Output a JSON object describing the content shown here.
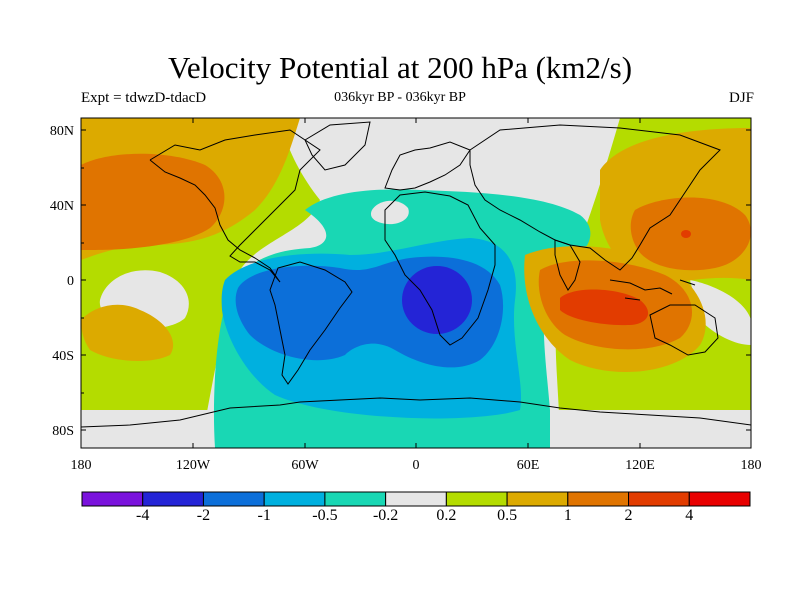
{
  "title": "Velocity Potential at 200 hPa (km2/s)",
  "subtitle_left": "Expt = tdwzD-tdacD",
  "subtitle_center": "036kyr BP - 036kyr BP",
  "subtitle_right": "DJF",
  "lat_labels": [
    "80N",
    "40N",
    "0",
    "40S",
    "80S"
  ],
  "lon_labels": [
    "180",
    "120W",
    "60W",
    "0",
    "60E",
    "120E",
    "180"
  ],
  "colorbar": {
    "levels": [
      "-4",
      "-2",
      "-1",
      "-0.5",
      "-0.2",
      "0.2",
      "0.5",
      "1",
      "2",
      "4"
    ],
    "colors": [
      "#7a12dc",
      "#2424d6",
      "#0c6fd9",
      "#00b0df",
      "#19d7b4",
      "#e6e6e6",
      "#b4dc00",
      "#dcaa00",
      "#e07400",
      "#e23c00",
      "#e80000"
    ]
  },
  "map_colors": {
    "blue_dark": "#2424d6",
    "blue": "#0c6fd9",
    "cyan": "#00b0df",
    "teal": "#19d7b4",
    "neutral": "#e6e6e6",
    "yellowgreen": "#b4dc00",
    "gold": "#dcaa00",
    "orange": "#e07400",
    "redorange": "#e23c00"
  }
}
